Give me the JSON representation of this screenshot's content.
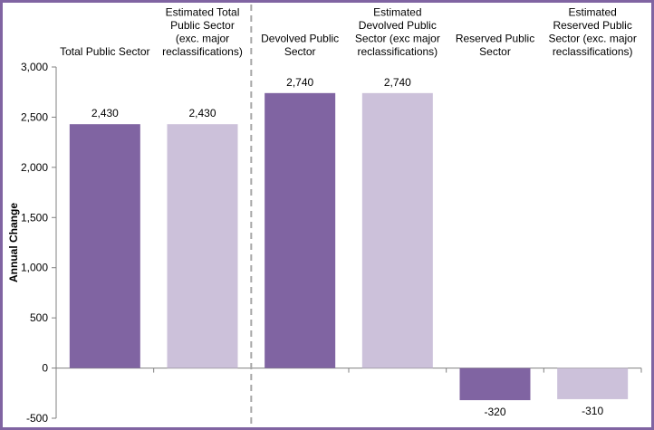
{
  "chart_data": {
    "type": "bar",
    "title": "",
    "xlabel": "",
    "ylabel": "Annual Change",
    "ylim": [
      -500,
      3000
    ],
    "yticks": [
      -500,
      0,
      500,
      1000,
      1500,
      2000,
      2500,
      3000
    ],
    "ytick_labels": [
      "-500",
      "0",
      "500",
      "1,000",
      "1,500",
      "2,000",
      "2,500",
      "3,000"
    ],
    "categories": [
      [
        "Total Public Sector"
      ],
      [
        "Estimated Total",
        "Public Sector",
        "(exc. major",
        "reclassifications)"
      ],
      [
        "Devolved Public",
        "Sector"
      ],
      [
        "Estimated",
        "Devolved Public",
        "Sector (exc major",
        "reclassifications)"
      ],
      [
        "Reserved Public",
        "Sector"
      ],
      [
        "Estimated",
        "Reserved Public",
        "Sector (exc. major",
        "reclassifications)"
      ]
    ],
    "values": [
      2430,
      2430,
      2740,
      2740,
      -320,
      -310
    ],
    "data_labels": [
      "2,430",
      "2,430",
      "2,740",
      "2,740",
      "-320",
      "-310"
    ],
    "colors": [
      "#8064a2",
      "#ccc1da",
      "#8064a2",
      "#ccc1da",
      "#8064a2",
      "#ccc1da"
    ],
    "separator": "dashed line between categories 2 and 3",
    "grid": false,
    "legend": "none"
  }
}
